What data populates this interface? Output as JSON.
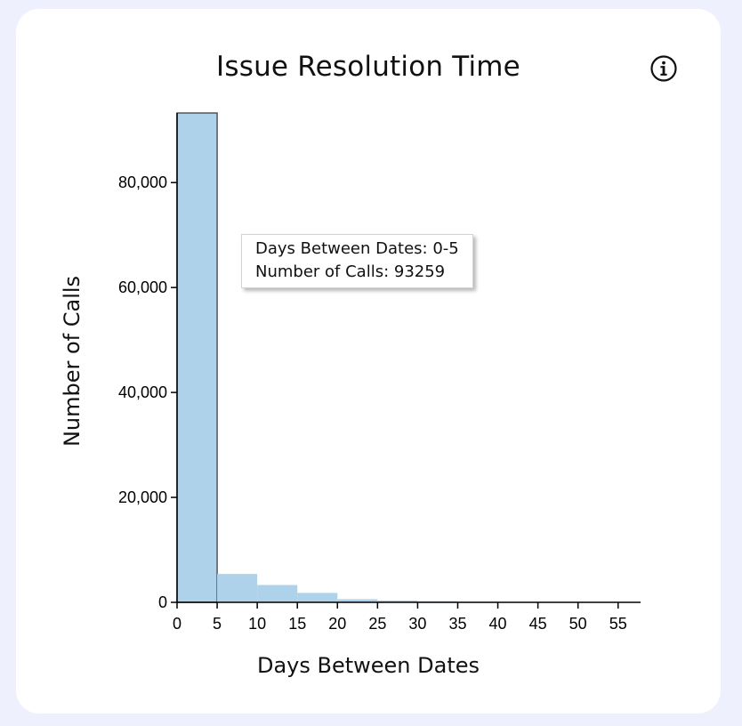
{
  "card": {
    "title": "Issue Resolution Time",
    "info_icon": "info-circle-icon"
  },
  "tooltip": {
    "line1_label": "Days Between Dates: ",
    "line1_value": "0-5",
    "line2_label": "Number of Calls: ",
    "line2_value": "93259"
  },
  "chart_data": {
    "type": "bar",
    "title": "Issue Resolution Time",
    "xlabel": "Days Between Dates",
    "ylabel": "Number of Calls",
    "bins": [
      {
        "x0": 0,
        "x1": 5,
        "value": 93259
      },
      {
        "x0": 5,
        "x1": 10,
        "value": 5400
      },
      {
        "x0": 10,
        "x1": 15,
        "value": 3300
      },
      {
        "x0": 15,
        "x1": 20,
        "value": 1800
      },
      {
        "x0": 20,
        "x1": 25,
        "value": 600
      },
      {
        "x0": 25,
        "x1": 30,
        "value": 350
      },
      {
        "x0": 30,
        "x1": 35,
        "value": 200
      },
      {
        "x0": 35,
        "x1": 40,
        "value": 100
      },
      {
        "x0": 40,
        "x1": 45,
        "value": 60
      },
      {
        "x0": 45,
        "x1": 50,
        "value": 40
      },
      {
        "x0": 50,
        "x1": 55,
        "value": 20
      }
    ],
    "xlim": [
      0,
      57.8
    ],
    "ylim": [
      0,
      93259
    ],
    "x_ticks": [
      0,
      5,
      10,
      15,
      20,
      25,
      30,
      35,
      40,
      45,
      50,
      55
    ],
    "y_ticks": [
      0,
      20000,
      40000,
      60000,
      80000
    ],
    "y_tick_labels": [
      "0",
      "20,000",
      "40,000",
      "60,000",
      "80,000"
    ],
    "highlighted_bin": 0,
    "grid": false,
    "legend": "none",
    "bar_color": "#aed2ea",
    "highlight_stroke": "#555555",
    "axis_color": "#000000"
  }
}
